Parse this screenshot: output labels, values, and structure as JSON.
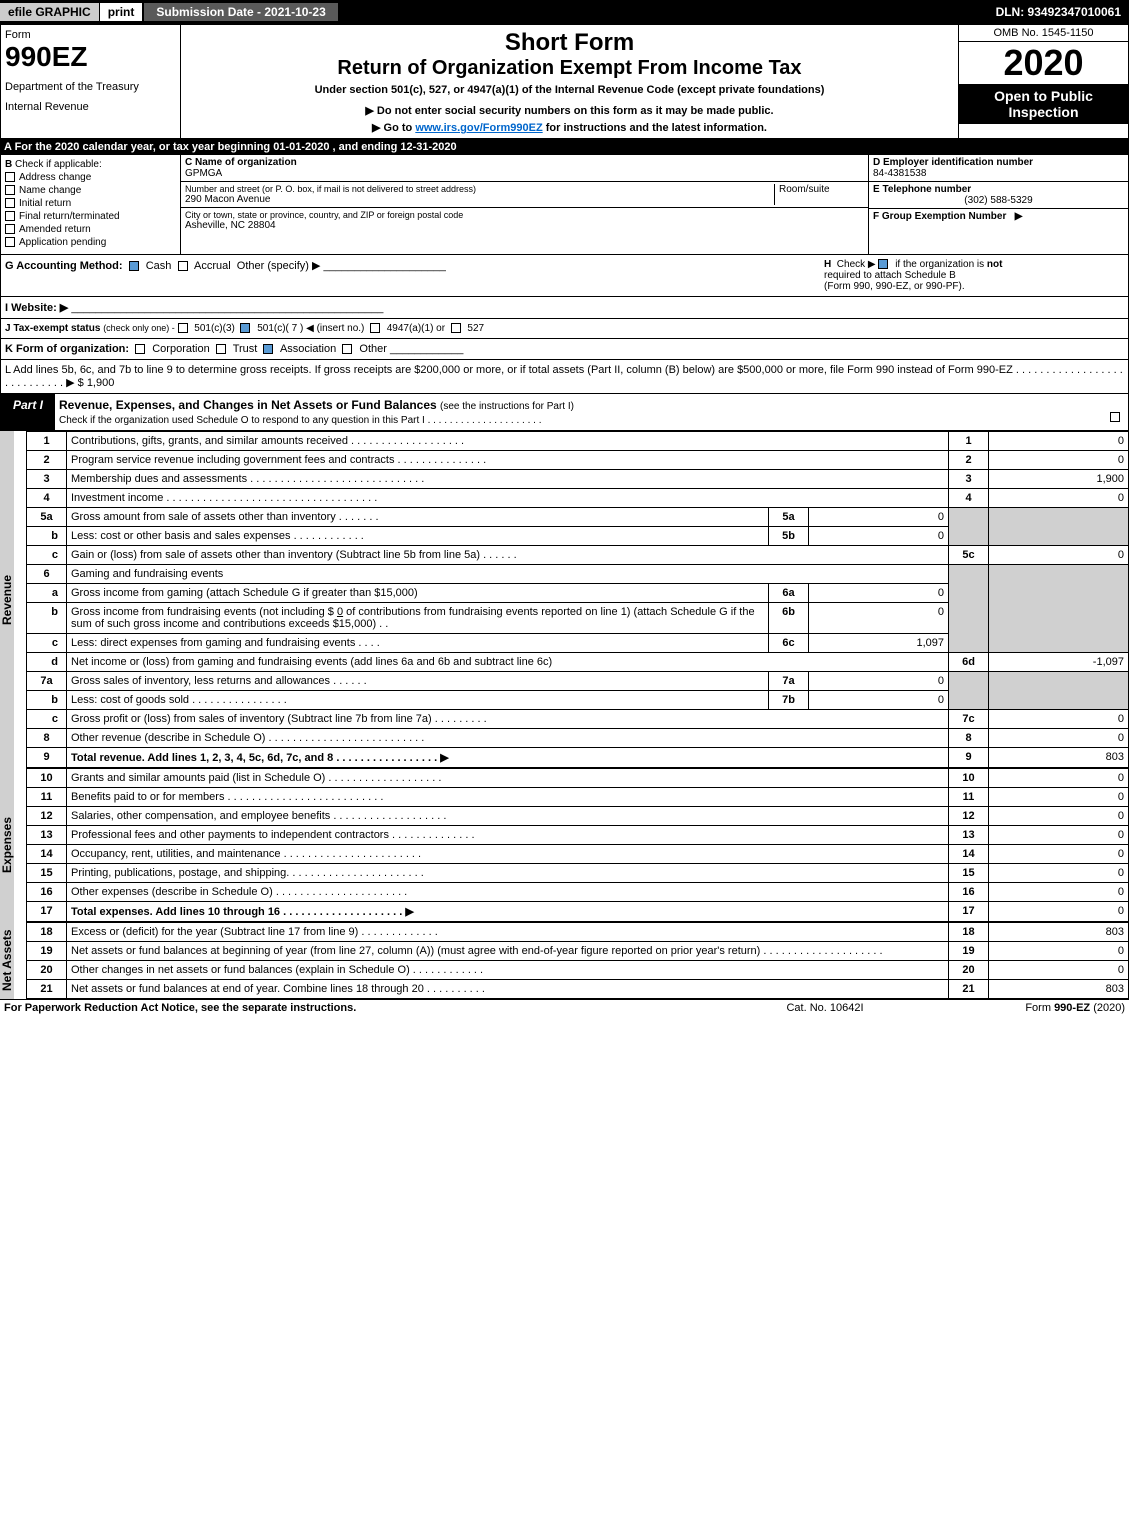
{
  "topbar": {
    "efile": "efile GRAPHIC",
    "print": "print",
    "submission": "Submission Date - 2021-10-23",
    "dln": "DLN: 93492347010061"
  },
  "header": {
    "form_label": "Form",
    "form_number": "990EZ",
    "dept1": "Department of the Treasury",
    "dept2": "Internal Revenue",
    "short_form": "Short Form",
    "return_title": "Return of Organization Exempt From Income Tax",
    "under_section": "Under section 501(c), 527, or 4947(a)(1) of the Internal Revenue Code (except private foundations)",
    "do_not": "▶ Do not enter social security numbers on this form as it may be made public.",
    "goto_pre": "▶ Go to ",
    "goto_link": "www.irs.gov/Form990EZ",
    "goto_post": " for instructions and the latest information.",
    "omb": "OMB No. 1545-1150",
    "year": "2020",
    "open": "Open to Public Inspection"
  },
  "tax_year_line": "A For the 2020 calendar year, or tax year beginning 01-01-2020 , and ending 12-31-2020",
  "section_b": {
    "label": "B",
    "check_if": "Check if applicable:",
    "items": [
      "Address change",
      "Name change",
      "Initial return",
      "Final return/terminated",
      "Amended return",
      "Application pending"
    ]
  },
  "section_c": {
    "name_label": "C Name of organization",
    "name": "GPMGA",
    "addr_label": "Number and street (or P. O. box, if mail is not delivered to street address)",
    "addr": "290 Macon Avenue",
    "room_label": "Room/suite",
    "city_label": "City or town, state or province, country, and ZIP or foreign postal code",
    "city": "Asheville, NC  28804"
  },
  "section_d": {
    "ein_label": "D Employer identification number",
    "ein": "84-4381538",
    "tel_label": "E Telephone number",
    "tel": "(302) 588-5329",
    "group_label": "F Group Exemption Number",
    "group_arrow": "▶"
  },
  "row_g": {
    "label": "G Accounting Method:",
    "cash": "Cash",
    "accrual": "Accrual",
    "other": "Other (specify) ▶",
    "h_label": "H",
    "h_check": "Check ▶",
    "h_text1": "if the organization is",
    "h_not": "not",
    "h_text2": "required to attach Schedule B",
    "h_text3": "(Form 990, 990-EZ, or 990-PF)."
  },
  "row_i": {
    "label": "I Website: ▶"
  },
  "row_j": {
    "label": "J Tax-exempt status",
    "sub": "(check only one) -",
    "o1": "501(c)(3)",
    "o2": "501(c)( 7 ) ◀ (insert no.)",
    "o3": "4947(a)(1) or",
    "o4": "527"
  },
  "row_k": {
    "label": "K Form of organization:",
    "corp": "Corporation",
    "trust": "Trust",
    "assoc": "Association",
    "other": "Other"
  },
  "row_l": {
    "text": "L Add lines 5b, 6c, and 7b to line 9 to determine gross receipts. If gross receipts are $200,000 or more, or if total assets (Part II, column (B) below) are $500,000 or more, file Form 990 instead of Form 990-EZ . . . . . . . . . . . . . . . . . . . . . . . . . . . . ▶ $ 1,900"
  },
  "part1": {
    "tab": "Part I",
    "title": "Revenue, Expenses, and Changes in Net Assets or Fund Balances",
    "title_sub": "(see the instructions for Part I)",
    "check_line": "Check if the organization used Schedule O to respond to any question in this Part I . . . . . . . . . . . . . . . . . . . . .",
    "check_box_val": "☐"
  },
  "side_labels": {
    "revenue": "Revenue",
    "expenses": "Expenses",
    "netassets": "Net Assets"
  },
  "lines": {
    "l1": {
      "num": "1",
      "desc": "Contributions, gifts, grants, and similar amounts received . . . . . . . . . . . . . . . . . . .",
      "box": "1",
      "val": "0"
    },
    "l2": {
      "num": "2",
      "desc": "Program service revenue including government fees and contracts . . . . . . . . . . . . . . .",
      "box": "2",
      "val": "0"
    },
    "l3": {
      "num": "3",
      "desc": "Membership dues and assessments . . . . . . . . . . . . . . . . . . . . . . . . . . . . .",
      "box": "3",
      "val": "1,900"
    },
    "l4": {
      "num": "4",
      "desc": "Investment income . . . . . . . . . . . . . . . . . . . . . . . . . . . . . . . . . . .",
      "box": "4",
      "val": "0"
    },
    "l5a": {
      "num": "5a",
      "desc": "Gross amount from sale of assets other than inventory . . . . . . .",
      "sub": "5a",
      "subval": "0"
    },
    "l5b": {
      "num": "b",
      "desc": "Less: cost or other basis and sales expenses . . . . . . . . . . . .",
      "sub": "5b",
      "subval": "0"
    },
    "l5c": {
      "num": "c",
      "desc": "Gain or (loss) from sale of assets other than inventory (Subtract line 5b from line 5a) . . . . . .",
      "box": "5c",
      "val": "0"
    },
    "l6": {
      "num": "6",
      "desc": "Gaming and fundraising events"
    },
    "l6a": {
      "num": "a",
      "desc": "Gross income from gaming (attach Schedule G if greater than $15,000)",
      "sub": "6a",
      "subval": "0"
    },
    "l6b": {
      "num": "b",
      "desc1": "Gross income from fundraising events (not including $ ",
      "desc_amt": "0",
      "desc2": " of contributions from fundraising events reported on line 1) (attach Schedule G if the sum of such gross income and contributions exceeds $15,000)   . .",
      "sub": "6b",
      "subval": "0"
    },
    "l6c": {
      "num": "c",
      "desc": "Less: direct expenses from gaming and fundraising events    . . . .",
      "sub": "6c",
      "subval": "1,097"
    },
    "l6d": {
      "num": "d",
      "desc": "Net income or (loss) from gaming and fundraising events (add lines 6a and 6b and subtract line 6c)",
      "box": "6d",
      "val": "-1,097"
    },
    "l7a": {
      "num": "7a",
      "desc": "Gross sales of inventory, less returns and allowances . . . . . .",
      "sub": "7a",
      "subval": "0"
    },
    "l7b": {
      "num": "b",
      "desc": "Less: cost of goods sold     . . . . . . . . . . . . . . . .",
      "sub": "7b",
      "subval": "0"
    },
    "l7c": {
      "num": "c",
      "desc": "Gross profit or (loss) from sales of inventory (Subtract line 7b from line 7a) . . . . . . . . .",
      "box": "7c",
      "val": "0"
    },
    "l8": {
      "num": "8",
      "desc": "Other revenue (describe in Schedule O) . . . . . . . . . . . . . . . . . . . . . . . . . .",
      "box": "8",
      "val": "0"
    },
    "l9": {
      "num": "9",
      "desc": "Total revenue. Add lines 1, 2, 3, 4, 5c, 6d, 7c, and 8  . . . . . . . . . . . . . . . . .  ▶",
      "box": "9",
      "val": "803",
      "bold": true
    },
    "l10": {
      "num": "10",
      "desc": "Grants and similar amounts paid (list in Schedule O) . . . . . . . . . . . . . . . . . . .",
      "box": "10",
      "val": "0"
    },
    "l11": {
      "num": "11",
      "desc": "Benefits paid to or for members    . . . . . . . . . . . . . . . . . . . . . . . . . .",
      "box": "11",
      "val": "0"
    },
    "l12": {
      "num": "12",
      "desc": "Salaries, other compensation, and employee benefits . . . . . . . . . . . . . . . . . . .",
      "box": "12",
      "val": "0"
    },
    "l13": {
      "num": "13",
      "desc": "Professional fees and other payments to independent contractors . . . . . . . . . . . . . .",
      "box": "13",
      "val": "0"
    },
    "l14": {
      "num": "14",
      "desc": "Occupancy, rent, utilities, and maintenance . . . . . . . . . . . . . . . . . . . . . . .",
      "box": "14",
      "val": "0"
    },
    "l15": {
      "num": "15",
      "desc": "Printing, publications, postage, and shipping. . . . . . . . . . . . . . . . . . . . . . .",
      "box": "15",
      "val": "0"
    },
    "l16": {
      "num": "16",
      "desc": "Other expenses (describe in Schedule O)    . . . . . . . . . . . . . . . . . . . . . .",
      "box": "16",
      "val": "0"
    },
    "l17": {
      "num": "17",
      "desc": "Total expenses. Add lines 10 through 16    . . . . . . . . . . . . . . . . . . . .  ▶",
      "box": "17",
      "val": "0",
      "bold": true
    },
    "l18": {
      "num": "18",
      "desc": "Excess or (deficit) for the year (Subtract line 17 from line 9)     . . . . . . . . . . . . .",
      "box": "18",
      "val": "803"
    },
    "l19": {
      "num": "19",
      "desc": "Net assets or fund balances at beginning of year (from line 27, column (A)) (must agree with end-of-year figure reported on prior year's return) . . . . . . . . . . . . . . . . . . . .",
      "box": "19",
      "val": "0"
    },
    "l20": {
      "num": "20",
      "desc": "Other changes in net assets or fund balances (explain in Schedule O) . . . . . . . . . . . .",
      "box": "20",
      "val": "0"
    },
    "l21": {
      "num": "21",
      "desc": "Net assets or fund balances at end of year. Combine lines 18 through 20 . . . . . . . . . .",
      "box": "21",
      "val": "803"
    }
  },
  "footer": {
    "left": "For Paperwork Reduction Act Notice, see the separate instructions.",
    "mid": "Cat. No. 10642I",
    "right_pre": "Form ",
    "right_bold": "990-EZ",
    "right_post": " (2020)"
  },
  "colors": {
    "black": "#000000",
    "white": "#ffffff",
    "gray_bg": "#d0d0d0",
    "link": "#0066cc",
    "check_blue": "#5a9bd5"
  }
}
